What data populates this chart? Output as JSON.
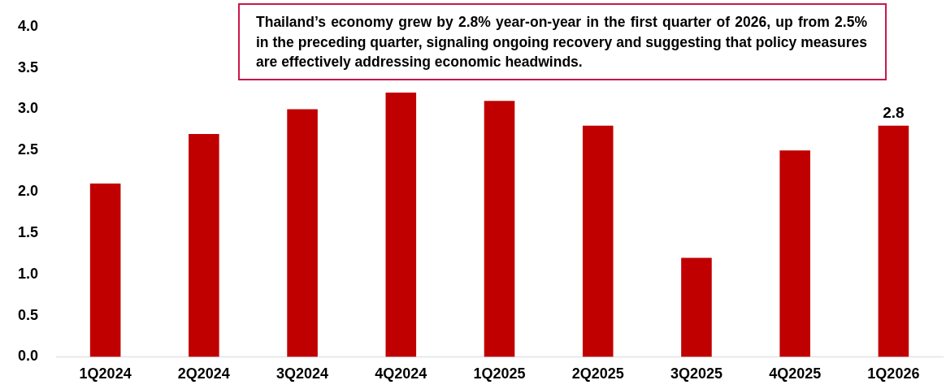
{
  "chart_data": {
    "type": "bar",
    "categories": [
      "1Q2024",
      "2Q2024",
      "3Q2024",
      "4Q2024",
      "1Q2025",
      "2Q2025",
      "3Q2025",
      "4Q2025",
      "1Q2026"
    ],
    "values": [
      2.1,
      2.7,
      3.0,
      3.2,
      3.1,
      2.8,
      1.2,
      2.5,
      2.8
    ],
    "color": "#c00000",
    "value_labels": [
      null,
      null,
      null,
      null,
      null,
      null,
      null,
      null,
      "2.8"
    ],
    "ylim": [
      0,
      4
    ],
    "yticks": [
      {
        "value": 0,
        "label": "0.0"
      },
      {
        "value": 0.5,
        "label": "0.5"
      },
      {
        "value": 1,
        "label": "1.0"
      },
      {
        "value": 1.5,
        "label": "1.5"
      },
      {
        "value": 2,
        "label": "2.0"
      },
      {
        "value": 2.5,
        "label": "2.5"
      },
      {
        "value": 3,
        "label": "3.0"
      },
      {
        "value": 3.5,
        "label": "3.5"
      },
      {
        "value": 4,
        "label": "4.0"
      }
    ],
    "grid": false,
    "annotations": [
      "Thailand’s economy grew by 2.8% year-on-year in the first quarter of 2026, up from 2.5% in the preceding quarter, signaling ongoing recovery and suggesting that policy measures are effectively addressing economic headwinds."
    ]
  }
}
